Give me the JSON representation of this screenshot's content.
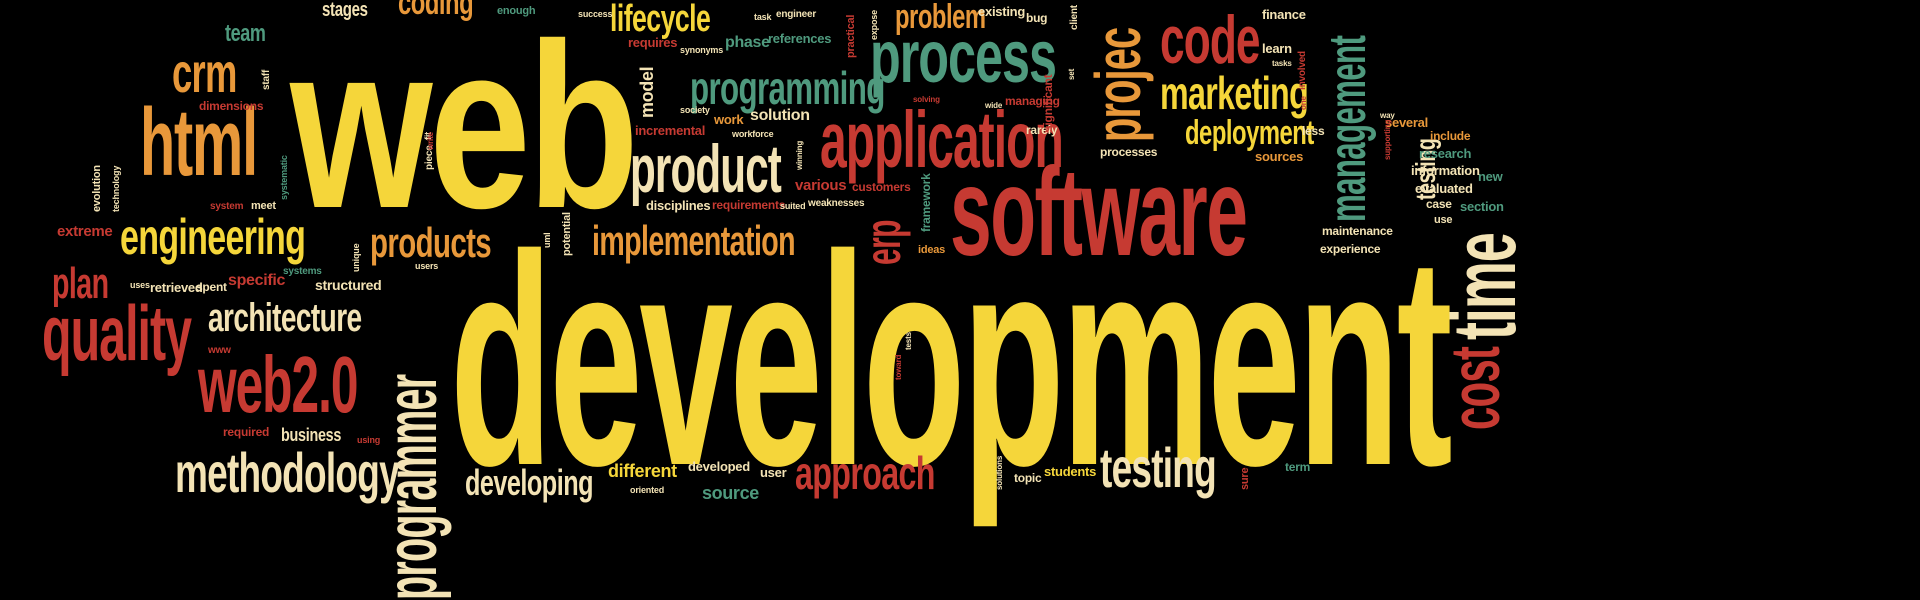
{
  "cloud": {
    "words": {
      "web": "web",
      "development": "development",
      "software": "software",
      "programming": "programming",
      "process": "process",
      "application": "application",
      "product": "product",
      "code": "code",
      "marketing": "marketing",
      "deployment": "deployment",
      "management": "management",
      "project": "projec",
      "engineering": "engineering",
      "html": "html",
      "crm": "crm",
      "quality": "quality",
      "plan": "plan",
      "architecture": "architecture",
      "web20": "web2.0",
      "methodology": "methodology",
      "programmer": "programmer",
      "products": "products",
      "implementation": "implementation",
      "testing_big": "testing",
      "approach": "approach",
      "time": "time",
      "cost": "cost",
      "erp": "erp",
      "lifecycle": "lifecycle",
      "problem": "problem",
      "coding": "coding",
      "stages": "stages",
      "team": "team",
      "testing_small": "testing",
      "developing": "developing",
      "business": "business",
      "structured": "structured",
      "retrieved": "retrieved",
      "specific": "specific",
      "extreme": "extreme",
      "evolution": "evolution",
      "technology": "technology",
      "system": "system",
      "meet": "meet",
      "dimensions": "dimensions",
      "staff": "staff",
      "phase": "phase",
      "references": "references",
      "requires": "requires",
      "model": "model",
      "practical": "practical",
      "solution": "solution",
      "work": "work",
      "incremental": "incremental",
      "various": "various",
      "customers": "customers",
      "framework": "framework",
      "requirements": "requirements",
      "disciplines": "disciplines",
      "weaknesses": "weaknesses",
      "potential": "potential",
      "different": "different",
      "developed": "developed",
      "user": "user",
      "students": "students",
      "topic": "topic",
      "term": "term",
      "experience": "experience",
      "maintenance": "maintenance",
      "section": "section",
      "new": "new",
      "evaluated": "evaluated",
      "information": "information",
      "research": "research",
      "include": "include",
      "several": "several",
      "sources": "sources",
      "processes": "processes",
      "rarely": "rarely",
      "managing": "managing",
      "significant": "significant",
      "finance": "finance",
      "learn": "learn",
      "involved": "involved",
      "existing": "existing",
      "bug": "bug",
      "client": "client",
      "enough": "enough",
      "success": "success",
      "engineer": "engineer",
      "task": "task",
      "synonyms": "synonyms",
      "society": "society",
      "workforce": "workforce",
      "winning": "winning",
      "suited": "suited",
      "uml": "uml",
      "ideas": "ideas",
      "spent": "spent",
      "uses": "uses",
      "systems": "systems",
      "unique": "unique",
      "users": "users",
      "www": "www",
      "required": "required",
      "using": "using",
      "piece": "piece",
      "fit": "fit",
      "write": "write",
      "systematic": "systematic",
      "case": "case",
      "use": "use",
      "less": "less",
      "way": "way",
      "one": "one",
      "tasks": "tasks",
      "wide": "wide",
      "solving": "solving",
      "expose": "expose",
      "source": "source",
      "oriented": "oriented",
      "toward": "toward",
      "tests": "tests",
      "solutions": "solutions",
      "sure": "sure",
      "supporting": "supporting",
      "set": "set"
    }
  },
  "colors": {
    "yellow": "#f5d63a",
    "orange": "#e8983a",
    "red": "#c63a32",
    "green": "#4f9a7e",
    "cream": "#f3e3b5",
    "darkred": "#9b3a2c",
    "teal": "#5f8f80"
  }
}
